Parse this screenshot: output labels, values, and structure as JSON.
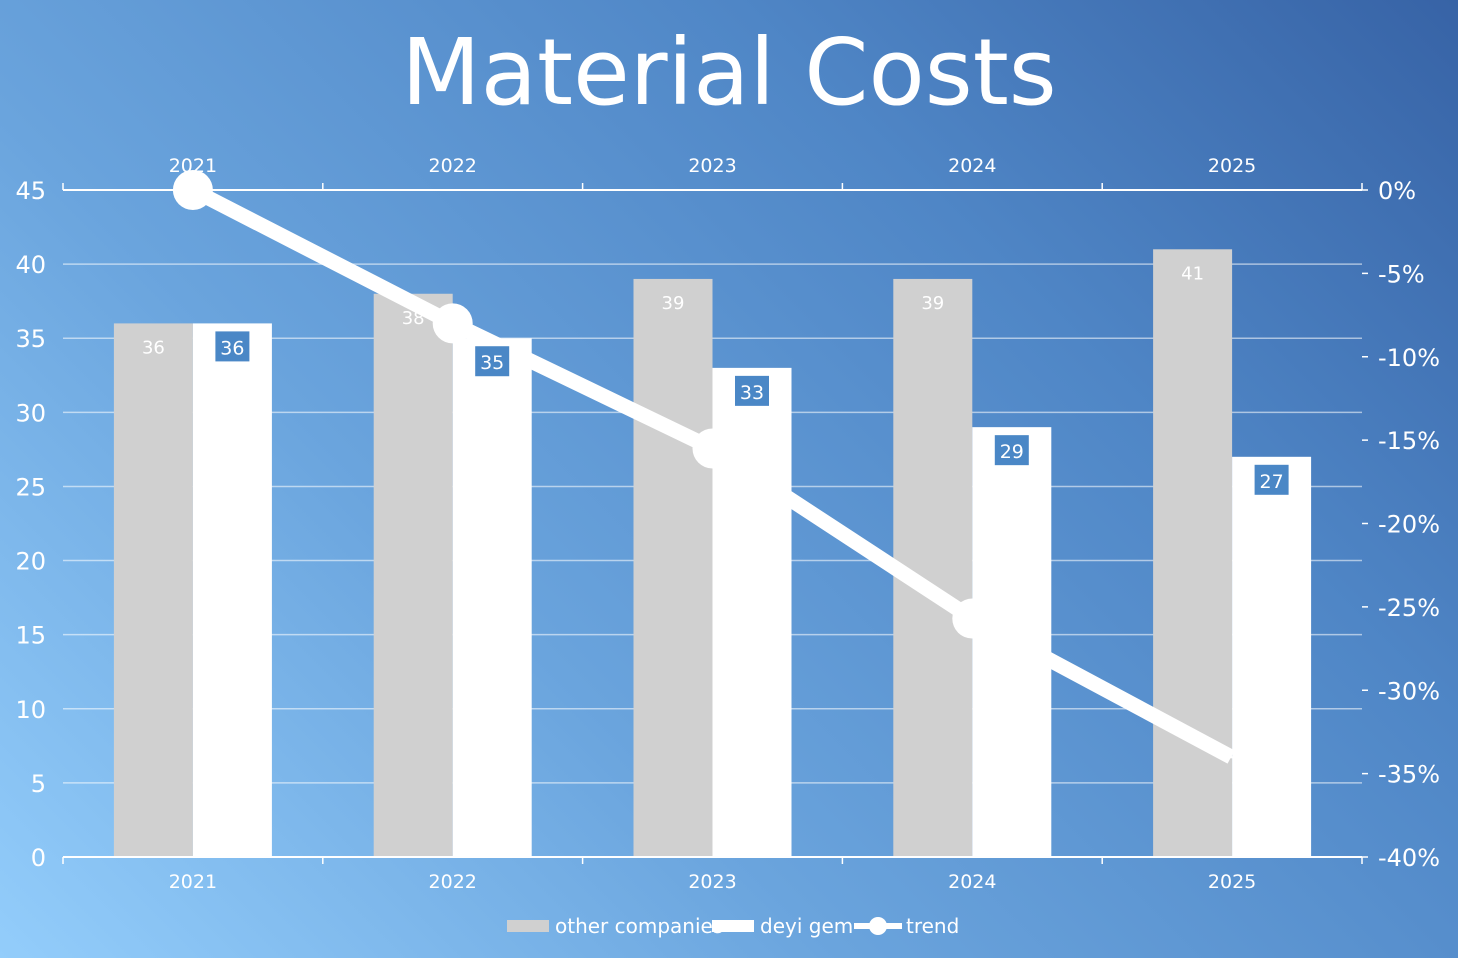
{
  "chart_data": {
    "type": "bar",
    "title": "Material Costs",
    "categories": [
      "2021",
      "2022",
      "2023",
      "2024",
      "2025"
    ],
    "series": [
      {
        "name": "other companies",
        "type": "bar",
        "axis": "left",
        "values": [
          36,
          38,
          39,
          39,
          41
        ],
        "color": "#d0d0d0"
      },
      {
        "name": "deyi  gem",
        "type": "bar",
        "axis": "left",
        "values": [
          36,
          35,
          33,
          29,
          27
        ],
        "color": "#ffffff"
      },
      {
        "name": "trend",
        "type": "line",
        "axis": "right",
        "values": [
          0,
          -8,
          -15.5,
          -25.7,
          -34
        ],
        "color": "#ffffff"
      }
    ],
    "y_left": {
      "min": 0,
      "max": 45,
      "step": 5,
      "ticks": [
        "0",
        "5",
        "10",
        "15",
        "20",
        "25",
        "30",
        "35",
        "40",
        "45"
      ]
    },
    "y_right": {
      "min": -40,
      "max": 0,
      "step": 5,
      "ticks": [
        "-40%",
        "-35%",
        "-30%",
        "-25%",
        "-20%",
        "-15%",
        "-10%",
        "-5%",
        "0%"
      ]
    },
    "grid": true,
    "legend_position": "bottom",
    "colors": {
      "label_box": "#4a87c6",
      "gridline": "#ffffff",
      "text": "#ffffff"
    }
  }
}
